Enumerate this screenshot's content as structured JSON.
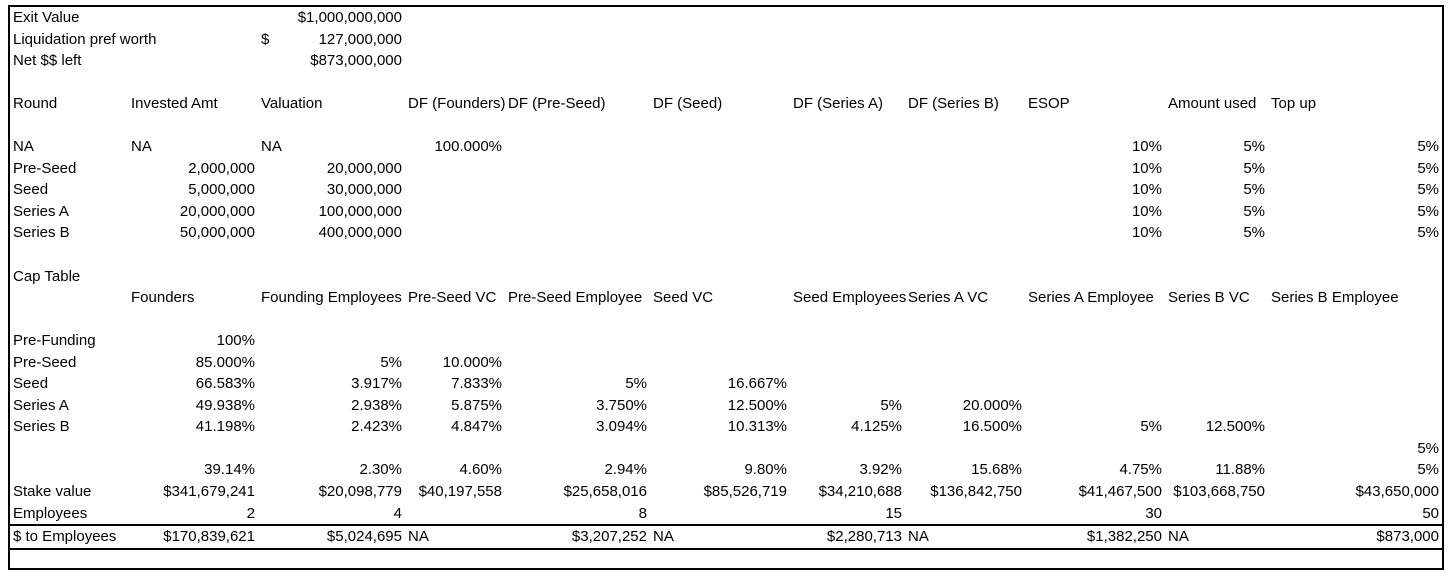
{
  "colors": {
    "background": "#ffffff",
    "text": "#000000",
    "border": "#000000"
  },
  "header_block": {
    "rows": [
      {
        "label": "Exit Value",
        "dollar": "",
        "amount": "$1,000,000,000"
      },
      {
        "label": "Liquidation pref worth",
        "dollar": "$",
        "amount": "127,000,000"
      },
      {
        "label": "Net $$ left",
        "dollar": "",
        "amount": "$873,000,000"
      }
    ]
  },
  "round_table": {
    "headers": [
      "Round",
      "Invested Amt",
      "Valuation",
      "DF (Founders)",
      "DF (Pre-Seed)",
      "DF (Seed)",
      "DF (Series A)",
      "DF (Series B)",
      "ESOP",
      "Amount used",
      "Top up"
    ],
    "rows": [
      [
        "NA",
        "NA",
        "NA",
        "100.000%",
        "",
        "",
        "",
        "",
        "10%",
        "5%",
        "5%"
      ],
      [
        "Pre-Seed",
        "2,000,000",
        "20,000,000",
        "",
        "",
        "",
        "",
        "",
        "10%",
        "5%",
        "5%"
      ],
      [
        "Seed",
        "5,000,000",
        "30,000,000",
        "",
        "",
        "",
        "",
        "",
        "10%",
        "5%",
        "5%"
      ],
      [
        "Series A",
        "20,000,000",
        "100,000,000",
        "",
        "",
        "",
        "",
        "",
        "10%",
        "5%",
        "5%"
      ],
      [
        "Series B",
        "50,000,000",
        "400,000,000",
        "",
        "",
        "",
        "",
        "",
        "10%",
        "5%",
        "5%"
      ]
    ]
  },
  "cap_table": {
    "title": "Cap Table",
    "headers": [
      "",
      "Founders",
      "Founding Employees",
      "Pre-Seed VC",
      "Pre-Seed Employee",
      "Seed VC",
      "Seed Employees",
      "Series A VC",
      "Series A Employee",
      "Series B VC",
      "Series B Employee"
    ],
    "rows": [
      [
        "Pre-Funding",
        "100%",
        "",
        "",
        "",
        "",
        "",
        "",
        "",
        "",
        ""
      ],
      [
        "Pre-Seed",
        "85.000%",
        "5%",
        "10.000%",
        "",
        "",
        "",
        "",
        "",
        "",
        ""
      ],
      [
        "Seed",
        "66.583%",
        "3.917%",
        "7.833%",
        "5%",
        "16.667%",
        "",
        "",
        "",
        "",
        ""
      ],
      [
        "Series A",
        "49.938%",
        "2.938%",
        "5.875%",
        "3.750%",
        "12.500%",
        "5%",
        "20.000%",
        "",
        "",
        ""
      ],
      [
        "Series B",
        "41.198%",
        "2.423%",
        "4.847%",
        "3.094%",
        "10.313%",
        "4.125%",
        "16.500%",
        "5%",
        "12.500%",
        ""
      ],
      [
        "",
        "",
        "",
        "",
        "",
        "",
        "",
        "",
        "",
        "",
        "5%"
      ],
      [
        "",
        "39.14%",
        "2.30%",
        "4.60%",
        "2.94%",
        "9.80%",
        "3.92%",
        "15.68%",
        "4.75%",
        "11.88%",
        "5%"
      ],
      [
        "Stake value",
        "$341,679,241",
        "$20,098,779",
        "$40,197,558",
        "$25,658,016",
        "$85,526,719",
        "$34,210,688",
        "$136,842,750",
        "$41,467,500",
        "$103,668,750",
        "$43,650,000"
      ],
      [
        "Employees",
        "2",
        "4",
        "",
        "8",
        "",
        "15",
        "",
        "30",
        "",
        "50"
      ],
      [
        "$ to Employees",
        "$170,839,621",
        "$5,024,695",
        "NA",
        "$3,207,252",
        "NA",
        "$2,280,713",
        "NA",
        "$1,382,250",
        "NA",
        "$873,000"
      ]
    ]
  }
}
